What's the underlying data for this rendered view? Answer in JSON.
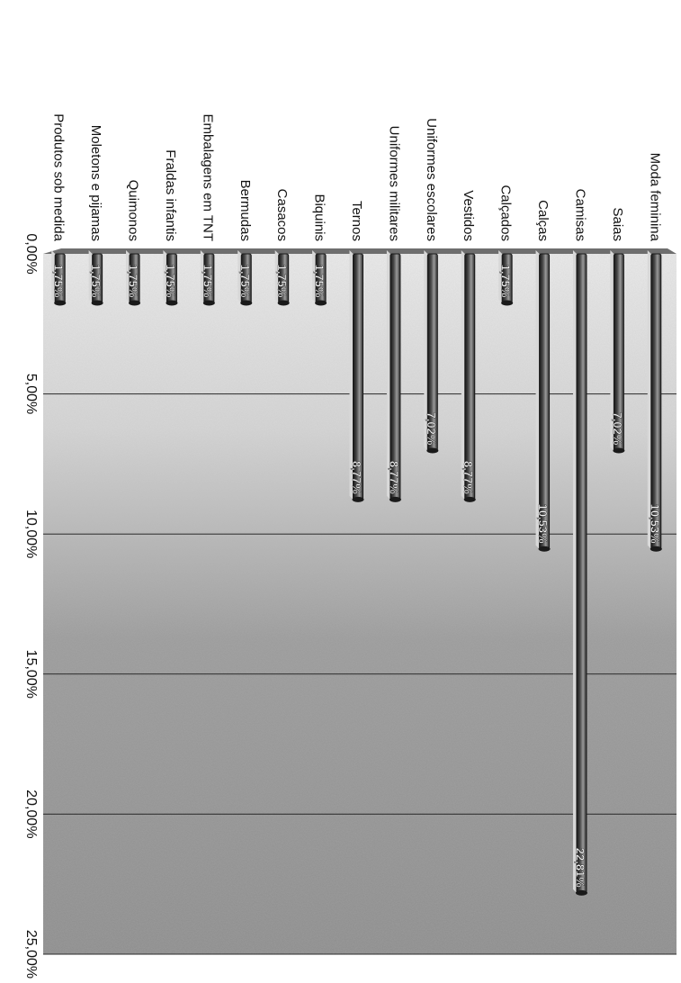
{
  "chart_data": {
    "type": "bar",
    "orientation": "horizontal-3d",
    "rotated": "90deg-clockwise",
    "title": "",
    "xlabel": "",
    "ylabel": "",
    "grid": true,
    "legend": "none",
    "xlim": [
      0,
      25
    ],
    "x_ticks": [
      "0,00%",
      "5,00%",
      "10,00%",
      "15,00%",
      "20,00%",
      "25,00%"
    ],
    "categories": [
      "Moda feminina",
      "Saias",
      "Camisas",
      "Calças",
      "Calçados",
      "Vestidos",
      "Uniformes escolares",
      "Uniformes militares",
      "Ternos",
      "Biquinis",
      "Casacos",
      "Bermudas",
      "Embalagens em TNT",
      "Fraldas infantis",
      "Quimonos",
      "Moletons e pijamas",
      "Produtos sob medida"
    ],
    "values": [
      10.53,
      7.02,
      22.81,
      10.53,
      1.75,
      8.77,
      7.02,
      8.77,
      8.77,
      1.75,
      1.75,
      1.75,
      1.75,
      1.75,
      1.75,
      1.75,
      1.75
    ],
    "data_labels": [
      "10,53%",
      "7,02%",
      "22,81%",
      "10,53%",
      "1,75%",
      "8,77%",
      "7,02%",
      "8,77%",
      "8,77%",
      "1,75%",
      "1,75%",
      "1,75%",
      "1,75%",
      "1,75%",
      "1,75%",
      "1,75%",
      "1,75%"
    ],
    "colors": {
      "bar_dark": "#1a1a1a",
      "bar_mid": "#6e6e6e",
      "bar_light": "#d8d8d8",
      "plot_background": "#8a8a8a",
      "plot_background_light": "#e2e2e2",
      "grid_line": "#2a2a2a",
      "text": "#111111",
      "label_text": "#f4f4f4"
    }
  }
}
